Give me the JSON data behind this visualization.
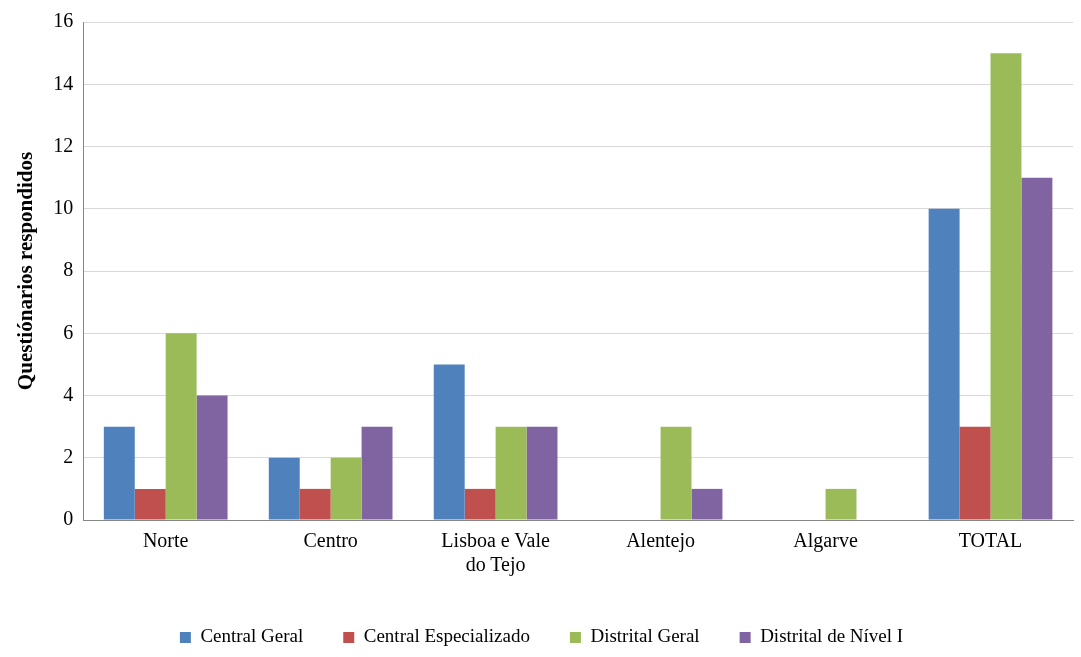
{
  "chart_data": {
    "type": "bar",
    "ylabel": "Questiónarios respondidos",
    "categories": [
      "Norte",
      "Centro",
      "Lisboa e Vale do Tejo",
      "Alentejo",
      "Algarve",
      "TOTAL"
    ],
    "series": [
      {
        "name": "Central Geral",
        "color": "#4f81bd",
        "values": [
          3,
          2,
          5,
          0,
          0,
          10
        ]
      },
      {
        "name": "Central Especializado",
        "color": "#c0504d",
        "values": [
          1,
          1,
          1,
          0,
          0,
          3
        ]
      },
      {
        "name": "Distrital Geral",
        "color": "#9bbb59",
        "values": [
          6,
          2,
          3,
          3,
          1,
          15
        ]
      },
      {
        "name": "Distrital de Nível I",
        "color": "#8064a2",
        "values": [
          4,
          3,
          3,
          1,
          0,
          11
        ]
      }
    ],
    "ylim": [
      0,
      16
    ],
    "yticks": [
      0,
      2,
      4,
      6,
      8,
      10,
      12,
      14,
      16
    ],
    "grid": "y",
    "legend": "bottom"
  }
}
